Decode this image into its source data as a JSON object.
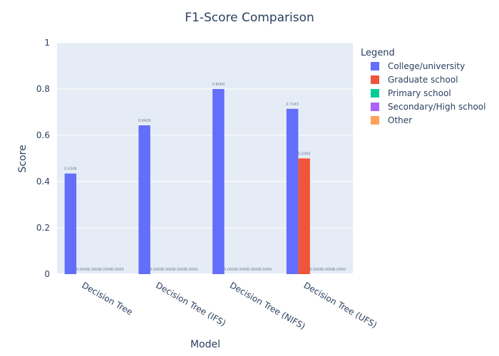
{
  "chart_data": {
    "type": "bar",
    "title": "F1-Score Comparison",
    "xlabel": "Model",
    "ylabel": "Score",
    "ylim": [
      0,
      1
    ],
    "yticks": [
      0,
      0.2,
      0.4,
      0.6,
      0.8,
      1
    ],
    "ytick_labels": [
      "0",
      "0.2",
      "0.4",
      "0.6",
      "0.8",
      "1"
    ],
    "categories": [
      "Decision Tree",
      "Decision Tree (IFS)",
      "Decision Tree (NIFS)",
      "Decision Tree (UFS)"
    ],
    "legend_title": "Legend",
    "legend_position": "right",
    "grid": true,
    "series": [
      {
        "name": "College/university",
        "color": "#636efa",
        "values": [
          0.4348,
          0.6429,
          0.8,
          0.7143
        ],
        "labels": [
          "0.4348",
          "0.6429",
          "0.8000",
          "0.7143"
        ]
      },
      {
        "name": "Graduate school",
        "color": "#ef553b",
        "values": [
          0,
          0,
          0,
          0.5
        ],
        "labels": [
          "0.0000",
          "0.0000",
          "0.0000",
          "0.5000"
        ]
      },
      {
        "name": "Primary school",
        "color": "#00cc96",
        "values": [
          0,
          0,
          0,
          0
        ],
        "labels": [
          "0.0000",
          "0.0000",
          "0.0000",
          "0.0000"
        ]
      },
      {
        "name": "Secondary/High school",
        "color": "#ab63fa",
        "values": [
          0,
          0,
          0,
          0
        ],
        "labels": [
          "0.0000",
          "0.0000",
          "0.0000",
          "0.0000"
        ]
      },
      {
        "name": "Other",
        "color": "#ffa15a",
        "values": [
          0,
          0,
          0,
          0
        ],
        "labels": [
          "0.0000",
          "0.0000",
          "0.0000",
          "0.0000"
        ]
      }
    ]
  }
}
